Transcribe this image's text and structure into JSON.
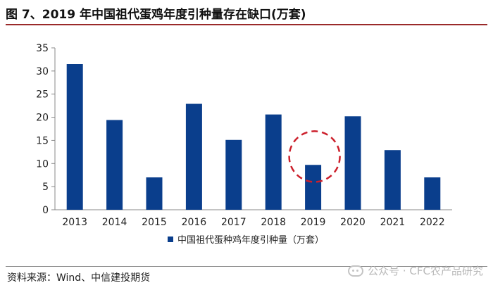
{
  "title": "图 7、2019 年中国祖代蛋鸡年度引种量存在缺口(万套)",
  "source": "资料来源：Wind、中信建投期货",
  "watermark": "公众号 · CFC农产品研究",
  "colors": {
    "bar": "#0a3e8c",
    "highlight": "#cc1f2b",
    "rule": "#9a2a2a"
  },
  "chart_data": {
    "type": "bar",
    "title": "图 7、2019 年中国祖代蛋鸡年度引种量存在缺口(万套)",
    "categories": [
      "2013",
      "2014",
      "2015",
      "2016",
      "2017",
      "2018",
      "2019",
      "2020",
      "2021",
      "2022"
    ],
    "series": [
      {
        "name": "中国祖代蛋种鸡年度引种量（万套）",
        "values": [
          31.5,
          19.4,
          7.0,
          22.9,
          15.1,
          20.6,
          9.7,
          20.2,
          12.9,
          7.0
        ]
      }
    ],
    "yticks": [
      0,
      5,
      10,
      15,
      20,
      25,
      30,
      35
    ],
    "ylim": [
      0,
      35
    ],
    "xlabel": "",
    "ylabel": "",
    "legend": "bottom-center",
    "annotation": {
      "type": "dashed-circle",
      "category": "2019"
    }
  }
}
